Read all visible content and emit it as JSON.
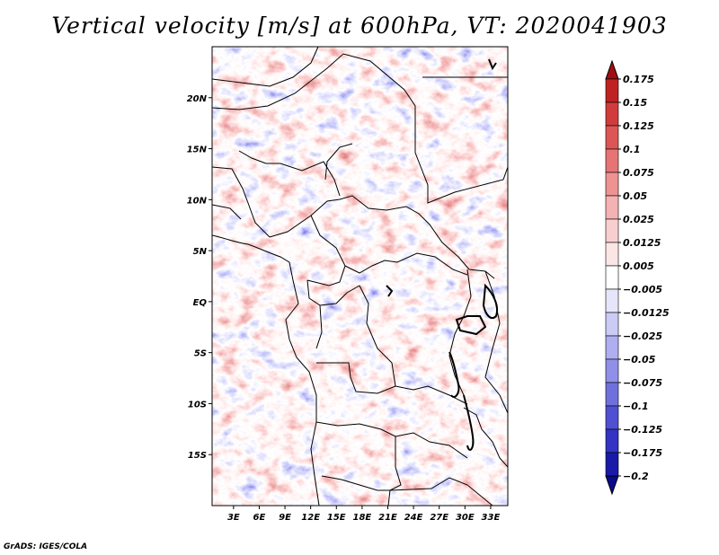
{
  "chart_data": {
    "type": "heatmap",
    "title": "Vertical velocity [m/s] at 600hPa, VT: 2020041903",
    "variable": "Vertical velocity",
    "units": "m/s",
    "level": "600hPa",
    "valid_time": "2020041903",
    "x_axis": {
      "tick_labels": [
        "3E",
        "6E",
        "9E",
        "12E",
        "15E",
        "18E",
        "21E",
        "24E",
        "27E",
        "30E",
        "33E"
      ],
      "tick_values": [
        3,
        6,
        9,
        12,
        15,
        18,
        21,
        24,
        27,
        30,
        33
      ],
      "range": [
        0.5,
        35
      ]
    },
    "y_axis": {
      "tick_labels": [
        "20N",
        "15N",
        "10N",
        "5N",
        "EQ",
        "5S",
        "10S",
        "15S"
      ],
      "tick_values": [
        20,
        15,
        10,
        5,
        0,
        -5,
        -10,
        -15
      ],
      "range": [
        -20,
        25
      ]
    },
    "colorbar": {
      "levels": [
        0.175,
        0.15,
        0.125,
        0.1,
        0.075,
        0.05,
        0.025,
        0.0125,
        0.005,
        -0.005,
        -0.0125,
        -0.025,
        -0.05,
        -0.075,
        -0.1,
        -0.125,
        -0.175,
        -0.2
      ],
      "labels": [
        "0.175",
        "0.15",
        "0.125",
        "0.1",
        "0.075",
        "0.05",
        "0.025",
        "0.0125",
        "0.005",
        "−0.005",
        "−0.0125",
        "−0.025",
        "−0.05",
        "−0.075",
        "−0.1",
        "−0.125",
        "−0.175",
        "−0.2"
      ],
      "colors": [
        "#a01010",
        "#be2222",
        "#d03c3c",
        "#dc5656",
        "#e67474",
        "#ee9292",
        "#f4b2b2",
        "#f8cfcf",
        "#fbe6e6",
        "#ffffff",
        "#e6e6fa",
        "#cbcbf6",
        "#aeaef0",
        "#9090e8",
        "#7070dd",
        "#5050d2",
        "#3333c4",
        "#1a1aa8",
        "#0a0a8c"
      ]
    }
  },
  "footer": {
    "credit": "GrADS: IGES/COLA"
  }
}
